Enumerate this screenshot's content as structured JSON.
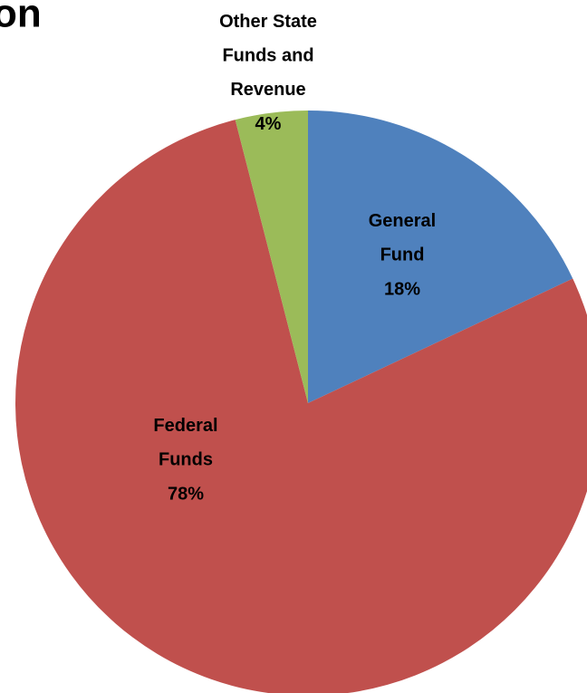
{
  "chart_data": {
    "type": "pie",
    "title": "on",
    "categories": [
      "General\nFund",
      "Federal\nFunds",
      "Other State\nFunds and\nRevenue"
    ],
    "values": [
      18,
      78,
      4
    ],
    "value_labels": [
      "18%",
      "78%",
      "4%"
    ],
    "colors": [
      "#4f81bd",
      "#c0504d",
      "#9bbb59"
    ]
  }
}
